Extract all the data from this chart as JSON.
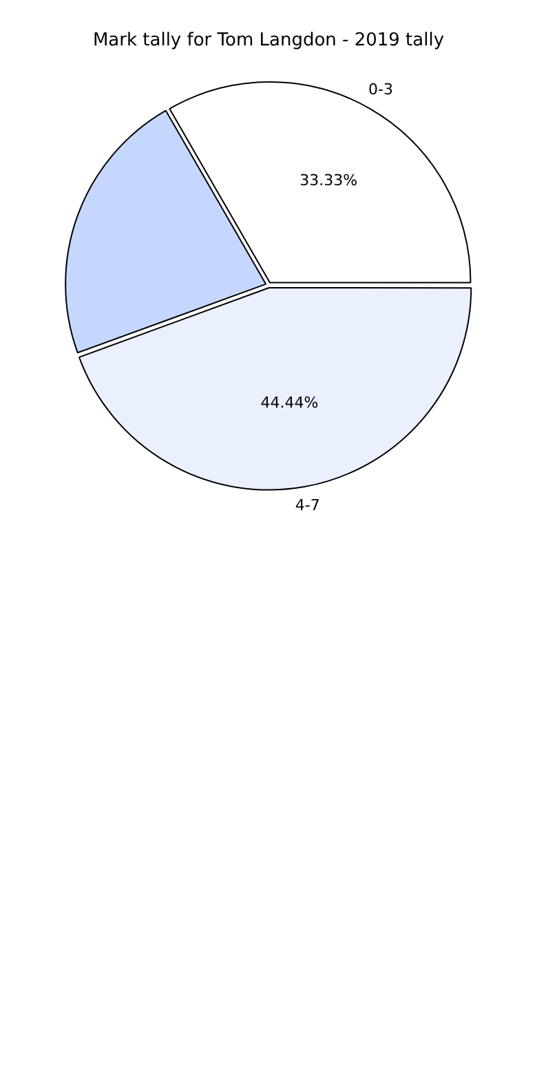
{
  "chart_data": {
    "type": "pie",
    "title": "Mark tally for Tom Langdon - 2019 tally",
    "categories": [
      "0-3",
      "4-7",
      null
    ],
    "values": [
      33.33,
      44.44,
      22.23
    ],
    "value_labels": [
      "33.33%",
      "44.44%",
      null
    ],
    "colors": [
      "#ffffff",
      "#eaf0fd",
      "#c5d7fe"
    ],
    "legend": false
  }
}
